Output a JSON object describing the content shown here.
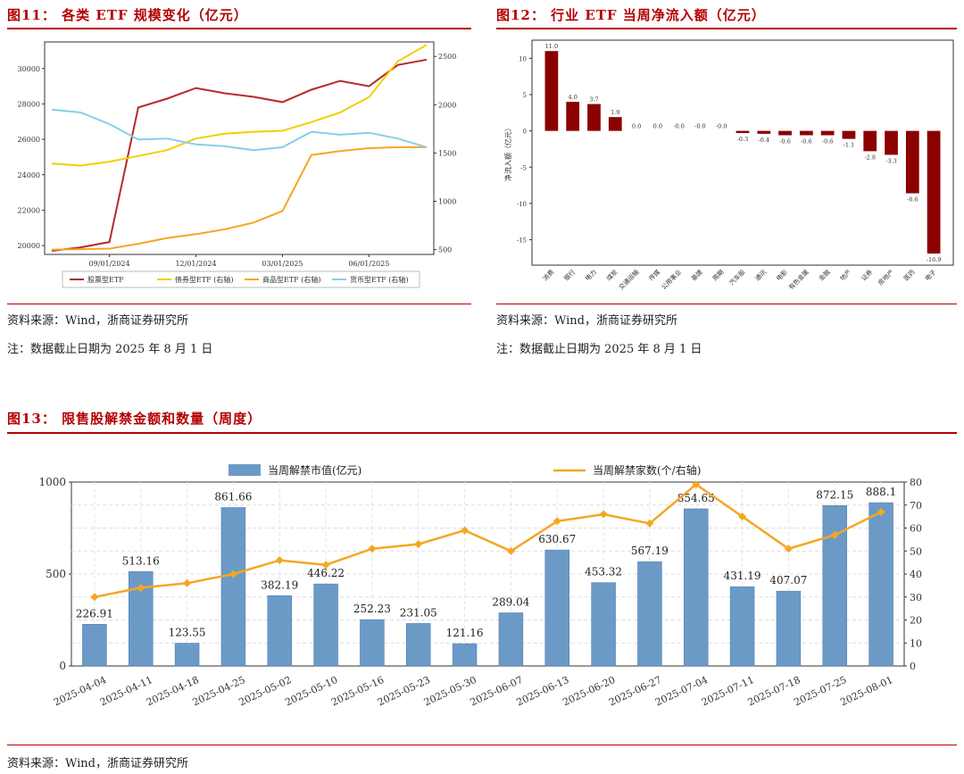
{
  "colors": {
    "accent": "#b40000",
    "stock": "#b52a2a",
    "bond": "#f0d000",
    "commodity": "#f5a623",
    "money": "#87ceeb",
    "bar_dark": "#8b0000",
    "bar_blue": "#6b9ac7",
    "line_orange": "#f5a623"
  },
  "fig11": {
    "title": "图11： 各类 ETF 规模变化（亿元）",
    "source": "资料来源：Wind，浙商证券研究所",
    "note": "注：数据截止日期为 2025 年 8 月 1 日",
    "chart_data": {
      "type": "line",
      "x": [
        "2024-07",
        "2024-08",
        "2024-09",
        "2024-10",
        "2024-11",
        "2024-12",
        "2025-01",
        "2025-02",
        "2025-03",
        "2025-04",
        "2025-05",
        "2025-06",
        "2025-07",
        "2025-08"
      ],
      "xtick_labels": [
        "09/01/2024",
        "12/01/2024",
        "03/01/2025",
        "06/01/2025"
      ],
      "xtick_positions": [
        2,
        5,
        8,
        11
      ],
      "left_ylim": [
        19500,
        31500
      ],
      "left_ticks": [
        "20000",
        "22000",
        "24000",
        "26000",
        "28000",
        "30000"
      ],
      "right_ylim": [
        450,
        2650
      ],
      "right_ticks": [
        "500",
        "1000",
        "1500",
        "2000",
        "2500"
      ],
      "series": [
        {
          "name": "股票型ETF",
          "axis": "left",
          "key": "stock",
          "values": [
            19700,
            19900,
            20200,
            27800,
            28300,
            28900,
            28600,
            28400,
            28100,
            28800,
            29300,
            29000,
            30200,
            30500
          ]
        },
        {
          "name": "债券型ETF (右轴)",
          "axis": "right",
          "key": "bond",
          "values": [
            1390,
            1370,
            1410,
            1470,
            1530,
            1650,
            1700,
            1720,
            1730,
            1820,
            1920,
            2080,
            2450,
            2620
          ]
        },
        {
          "name": "商品型ETF (右轴)",
          "axis": "right",
          "key": "commodity",
          "values": [
            500,
            505,
            510,
            560,
            620,
            660,
            710,
            780,
            900,
            1480,
            1520,
            1550,
            1560,
            1560
          ]
        },
        {
          "name": "货币型ETF (右轴)",
          "axis": "right",
          "key": "money",
          "values": [
            1950,
            1920,
            1800,
            1640,
            1650,
            1590,
            1570,
            1530,
            1560,
            1720,
            1690,
            1710,
            1650,
            1560
          ]
        }
      ]
    }
  },
  "fig12": {
    "title": "图12： 行业 ETF 当周净流入额（亿元）",
    "source": "资料来源：Wind，浙商证券研究所",
    "note": "注：数据截止日期为 2025 年 8 月 1 日",
    "chart_data": {
      "type": "bar",
      "ylabel": "净流入额（亿元）",
      "ylim": [
        -18.5,
        12.5
      ],
      "yticks": [
        -15,
        -10,
        -5,
        0,
        5,
        10
      ],
      "categories": [
        "消费",
        "银行",
        "电力",
        "煤炭",
        "交通运输",
        "传媒",
        "公用事业",
        "基建",
        "周期",
        "汽车股",
        "通讯",
        "电影",
        "有色金属",
        "金融",
        "地产",
        "证券",
        "房地产",
        "医药",
        "电子"
      ],
      "values": [
        11.0,
        4.0,
        3.7,
        1.9,
        0.0,
        0.0,
        -0.0,
        -0.0,
        -0.0,
        -0.3,
        -0.4,
        -0.6,
        -0.6,
        -0.6,
        -1.1,
        -2.8,
        -3.3,
        -8.6,
        -16.9
      ],
      "labels": [
        "11.0",
        "4.0",
        "3.7",
        "1.9",
        "0.0",
        "0.0",
        "-0.0",
        "-0.0",
        "-0.0",
        "-0.3",
        "-0.4",
        "-0.6",
        "-0.6",
        "-0.6",
        "-1.1",
        "-2.8",
        "-3.3",
        "-8.6",
        "-16.9"
      ]
    }
  },
  "fig13": {
    "title": "图13： 限售股解禁金额和数量（周度）",
    "source": "资料来源：Wind，浙商证券研究所",
    "chart_data": {
      "type": "bar",
      "categories": [
        "2025-04-04",
        "2025-04-11",
        "2025-04-18",
        "2025-04-25",
        "2025-05-02",
        "2025-05-10",
        "2025-05-16",
        "2025-05-23",
        "2025-05-30",
        "2025-06-07",
        "2025-06-13",
        "2025-06-20",
        "2025-06-27",
        "2025-07-04",
        "2025-07-11",
        "2025-07-18",
        "2025-07-25",
        "2025-08-01"
      ],
      "series": [
        {
          "name": "当周解禁市值(亿元)",
          "axis": "left",
          "type": "bar",
          "values": [
            226.91,
            513.16,
            123.55,
            861.66,
            382.19,
            446.22,
            252.23,
            231.05,
            121.16,
            289.04,
            630.67,
            453.32,
            567.19,
            854.65,
            431.19,
            407.07,
            872.15,
            888.1
          ],
          "labels": [
            "226.91",
            "513.16",
            "123.55",
            "861.66",
            "382.19",
            "446.22",
            "252.23",
            "231.05",
            "121.16",
            "289.04",
            "630.67",
            "453.32",
            "567.19",
            "854.65",
            "431.19",
            "407.07",
            "872.15",
            "888.1"
          ]
        },
        {
          "name": "当周解禁家数(个/右轴)",
          "axis": "right",
          "type": "line",
          "values": [
            30,
            34,
            36,
            40,
            46,
            44,
            51,
            53,
            59,
            50,
            63,
            66,
            62,
            79,
            65,
            51,
            57,
            67
          ]
        }
      ],
      "left_ylim": [
        0,
        1000
      ],
      "left_ticks": [
        "0",
        "500",
        "1000"
      ],
      "right_ylim": [
        0,
        80
      ],
      "right_ticks": [
        "0",
        "10",
        "20",
        "30",
        "40",
        "50",
        "60",
        "70",
        "80"
      ]
    }
  }
}
